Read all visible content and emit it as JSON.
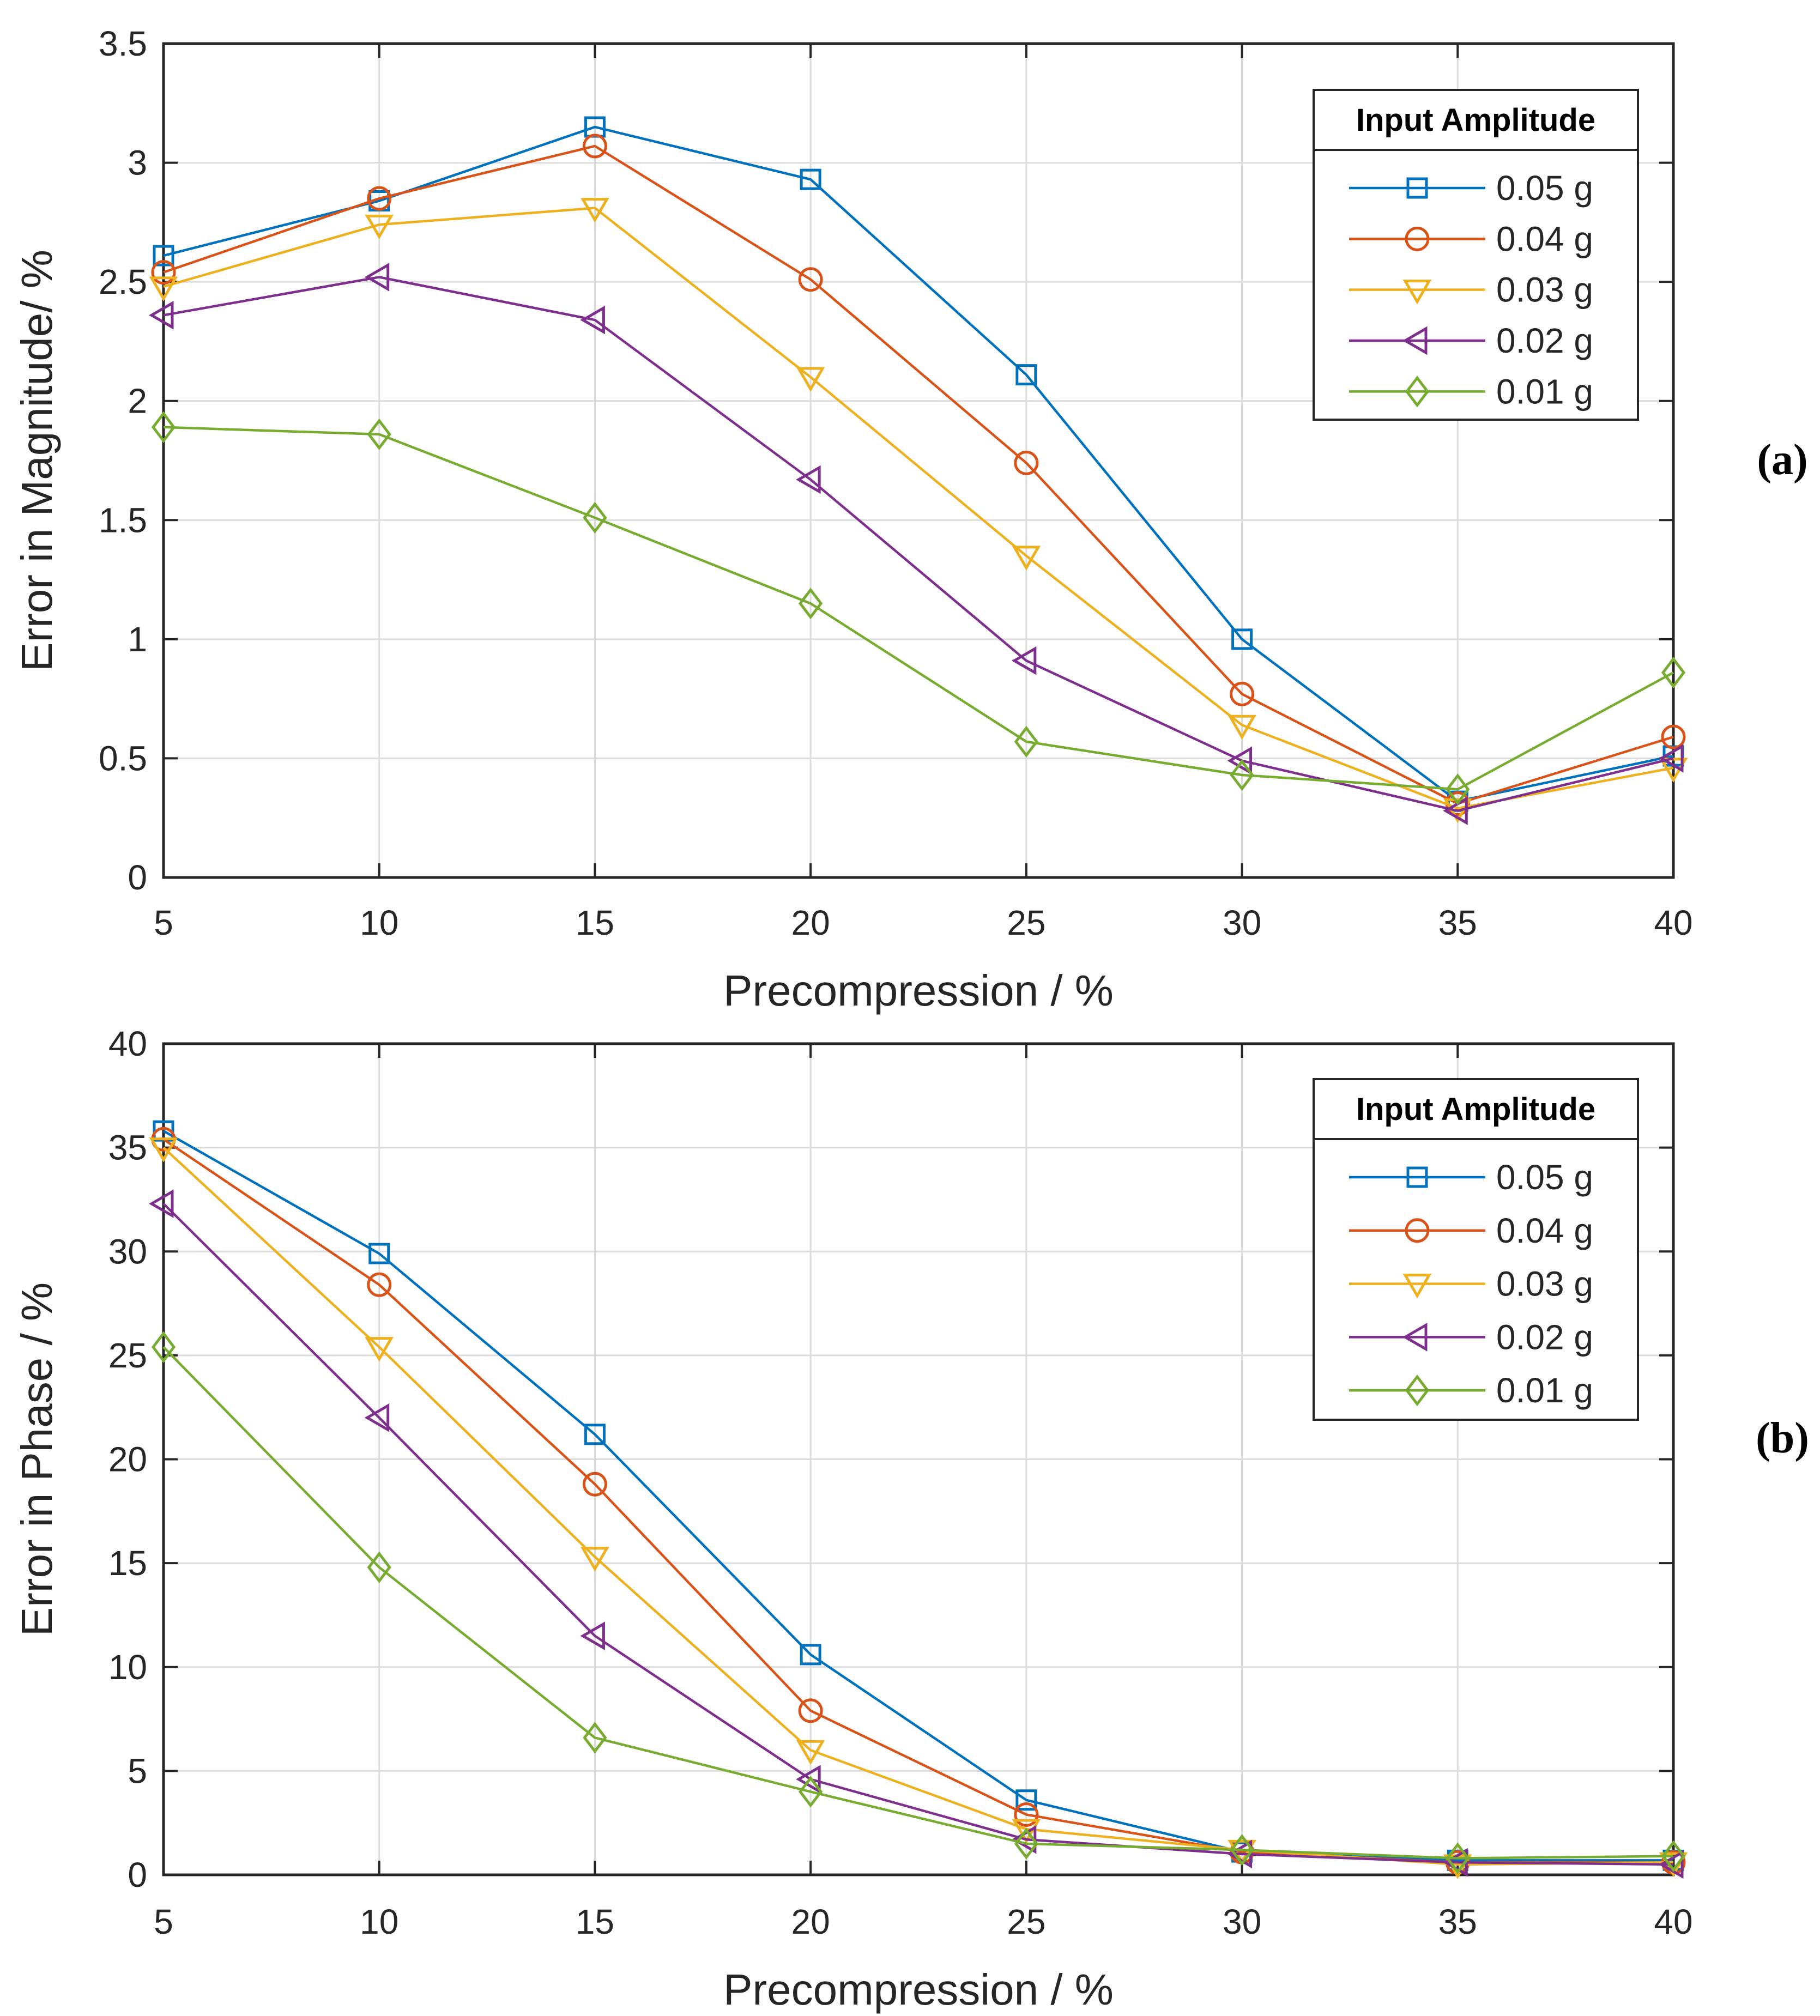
{
  "chart_data": [
    {
      "type": "line",
      "panel_label": "(a)",
      "xlabel": "Precompression / %",
      "ylabel": "Error in Magnitude/ %",
      "xlim": [
        5,
        40
      ],
      "ylim": [
        0,
        3.5
      ],
      "xticks": [
        "5",
        "10",
        "15",
        "20",
        "25",
        "30",
        "35",
        "40"
      ],
      "yticks": [
        "0",
        "0.5",
        "1",
        "1.5",
        "2",
        "2.5",
        "3",
        "3.5"
      ],
      "grid": true,
      "legend_title": "Input Amplitude",
      "legend_position": "top-right",
      "x": [
        5,
        10,
        15,
        20,
        25,
        30,
        35,
        40
      ],
      "series": [
        {
          "name": "0.05 g",
          "marker": "square",
          "color": "#0072BD",
          "values": [
            2.61,
            2.84,
            3.15,
            2.93,
            2.11,
            1.0,
            0.32,
            0.51
          ]
        },
        {
          "name": "0.04 g",
          "marker": "circle",
          "color": "#D95319",
          "values": [
            2.54,
            2.85,
            3.07,
            2.51,
            1.74,
            0.77,
            0.31,
            0.59
          ]
        },
        {
          "name": "0.03 g",
          "marker": "triangle-down",
          "color": "#EDB120",
          "values": [
            2.48,
            2.74,
            2.81,
            2.1,
            1.35,
            0.64,
            0.29,
            0.46
          ]
        },
        {
          "name": "0.02 g",
          "marker": "triangle-left",
          "color": "#7E2F8E",
          "values": [
            2.36,
            2.52,
            2.34,
            1.67,
            0.91,
            0.49,
            0.28,
            0.5
          ]
        },
        {
          "name": "0.01 g",
          "marker": "diamond",
          "color": "#77AC30",
          "values": [
            1.89,
            1.86,
            1.51,
            1.15,
            0.57,
            0.43,
            0.37,
            0.86
          ]
        }
      ]
    },
    {
      "type": "line",
      "panel_label": "(b)",
      "xlabel": "Precompression / %",
      "ylabel": "Error in Phase / %",
      "xlim": [
        5,
        40
      ],
      "ylim": [
        0,
        40
      ],
      "xticks": [
        "5",
        "10",
        "15",
        "20",
        "25",
        "30",
        "35",
        "40"
      ],
      "yticks": [
        "0",
        "5",
        "10",
        "15",
        "20",
        "25",
        "30",
        "35",
        "40"
      ],
      "grid": true,
      "legend_title": "Input Amplitude",
      "legend_position": "top-right",
      "x": [
        5,
        10,
        15,
        20,
        25,
        30,
        35,
        40
      ],
      "series": [
        {
          "name": "0.05 g",
          "marker": "square",
          "color": "#0072BD",
          "values": [
            35.8,
            29.9,
            21.2,
            10.6,
            3.6,
            1.1,
            0.7,
            0.7
          ]
        },
        {
          "name": "0.04 g",
          "marker": "circle",
          "color": "#D95319",
          "values": [
            35.4,
            28.4,
            18.8,
            7.9,
            2.9,
            1.1,
            0.6,
            0.6
          ]
        },
        {
          "name": "0.03 g",
          "marker": "triangle-down",
          "color": "#EDB120",
          "values": [
            35.0,
            25.4,
            15.3,
            6.0,
            2.2,
            1.2,
            0.5,
            0.6
          ]
        },
        {
          "name": "0.02 g",
          "marker": "triangle-left",
          "color": "#7E2F8E",
          "values": [
            32.3,
            22.0,
            11.5,
            4.6,
            1.7,
            1.0,
            0.6,
            0.5
          ]
        },
        {
          "name": "0.01 g",
          "marker": "diamond",
          "color": "#77AC30",
          "values": [
            25.4,
            14.8,
            6.6,
            4.0,
            1.5,
            1.2,
            0.8,
            0.9
          ]
        }
      ]
    }
  ]
}
